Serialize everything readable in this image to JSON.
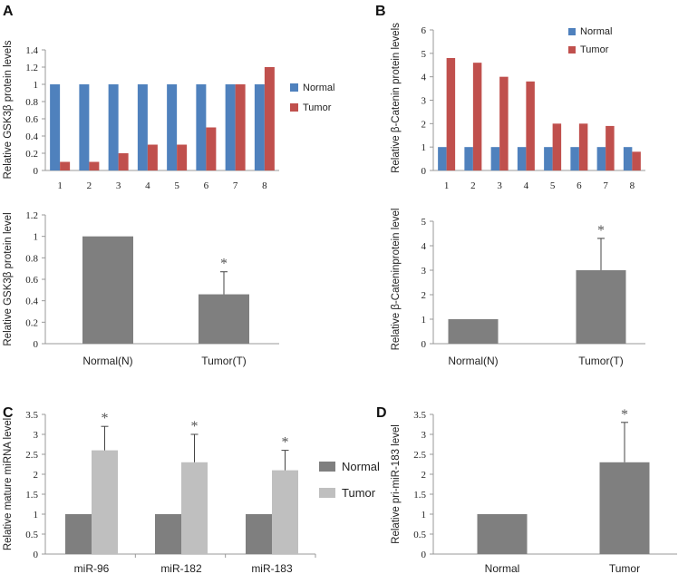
{
  "chart_data": [
    {
      "id": "A_top",
      "panel_label": "A",
      "type": "bar",
      "ylabel": "Relative GSK3β protein levels",
      "ylim": [
        0,
        1.4
      ],
      "yticks": [
        "0",
        "0.2",
        "0.4",
        "0.6",
        "0.8",
        "1",
        "1.2",
        "1.4"
      ],
      "categories": [
        "1",
        "2",
        "3",
        "4",
        "5",
        "6",
        "7",
        "8"
      ],
      "series": [
        {
          "name": "Normal",
          "color": "#4F81BD",
          "values": [
            1,
            1,
            1,
            1,
            1,
            1,
            1,
            1
          ]
        },
        {
          "name": "Tumor",
          "color": "#C0504D",
          "values": [
            0.1,
            0.1,
            0.2,
            0.3,
            0.3,
            0.5,
            1.0,
            1.2
          ]
        }
      ],
      "legend": "right"
    },
    {
      "id": "B_top",
      "panel_label": "B",
      "type": "bar",
      "ylabel": "Relative β-Catenin protein levels",
      "ylim": [
        0,
        6
      ],
      "yticks": [
        "0",
        "1",
        "2",
        "3",
        "4",
        "5",
        "6"
      ],
      "categories": [
        "1",
        "2",
        "3",
        "4",
        "5",
        "6",
        "7",
        "8"
      ],
      "series": [
        {
          "name": "Normal",
          "color": "#4F81BD",
          "values": [
            1,
            1,
            1,
            1,
            1,
            1,
            1,
            1
          ]
        },
        {
          "name": "Tumor",
          "color": "#C0504D",
          "values": [
            4.8,
            4.6,
            4.0,
            3.8,
            2.0,
            2.0,
            1.9,
            0.8
          ]
        }
      ],
      "legend": "top-right"
    },
    {
      "id": "A_bottom",
      "type": "bar",
      "ylabel": "Relative GSK3β protein level",
      "ylim": [
        0,
        1.2
      ],
      "yticks": [
        "0",
        "0.2",
        "0.4",
        "0.6",
        "0.8",
        "1",
        "1.2"
      ],
      "categories": [
        "Normal(N)",
        "Tumor(T)"
      ],
      "values": [
        1.0,
        0.46
      ],
      "errors": [
        0,
        0.21
      ],
      "significance": [
        "",
        "*"
      ],
      "color": "#7F7F7F"
    },
    {
      "id": "B_bottom",
      "type": "bar",
      "ylabel": "Relative β-Cateninprotein level",
      "ylim": [
        0,
        5
      ],
      "yticks": [
        "0",
        "1",
        "2",
        "3",
        "4",
        "5"
      ],
      "categories": [
        "Normal(N)",
        "Tumor(T)"
      ],
      "values": [
        1.0,
        3.0
      ],
      "errors": [
        0,
        1.3
      ],
      "significance": [
        "",
        "*"
      ],
      "color": "#7F7F7F"
    },
    {
      "id": "C",
      "panel_label": "C",
      "type": "bar",
      "ylabel": "Relative mature miRNA level",
      "ylim": [
        0,
        3.5
      ],
      "yticks": [
        "0",
        "0.5",
        "1",
        "1.5",
        "2",
        "2.5",
        "3",
        "3.5"
      ],
      "categories": [
        "miR-96",
        "miR-182",
        "miR-183"
      ],
      "series": [
        {
          "name": "Normal",
          "color": "#7F7F7F",
          "values": [
            1,
            1,
            1
          ],
          "errors": [
            0,
            0,
            0
          ]
        },
        {
          "name": "Tumor",
          "color": "#BFBFBF",
          "values": [
            2.6,
            2.3,
            2.1
          ],
          "errors": [
            0.6,
            0.7,
            0.5
          ]
        }
      ],
      "significance": [
        "*",
        "*",
        "*"
      ],
      "legend": "right"
    },
    {
      "id": "D",
      "panel_label": "D",
      "type": "bar",
      "ylabel": "Relative pri-miR-183 level",
      "ylim": [
        0,
        3.5
      ],
      "yticks": [
        "0",
        "0.5",
        "1",
        "1.5",
        "2",
        "2.5",
        "3",
        "3.5"
      ],
      "categories": [
        "Normal",
        "Tumor"
      ],
      "values": [
        1.0,
        2.3
      ],
      "errors": [
        0,
        1.0
      ],
      "significance": [
        "",
        "*"
      ],
      "color": "#7F7F7F"
    }
  ]
}
